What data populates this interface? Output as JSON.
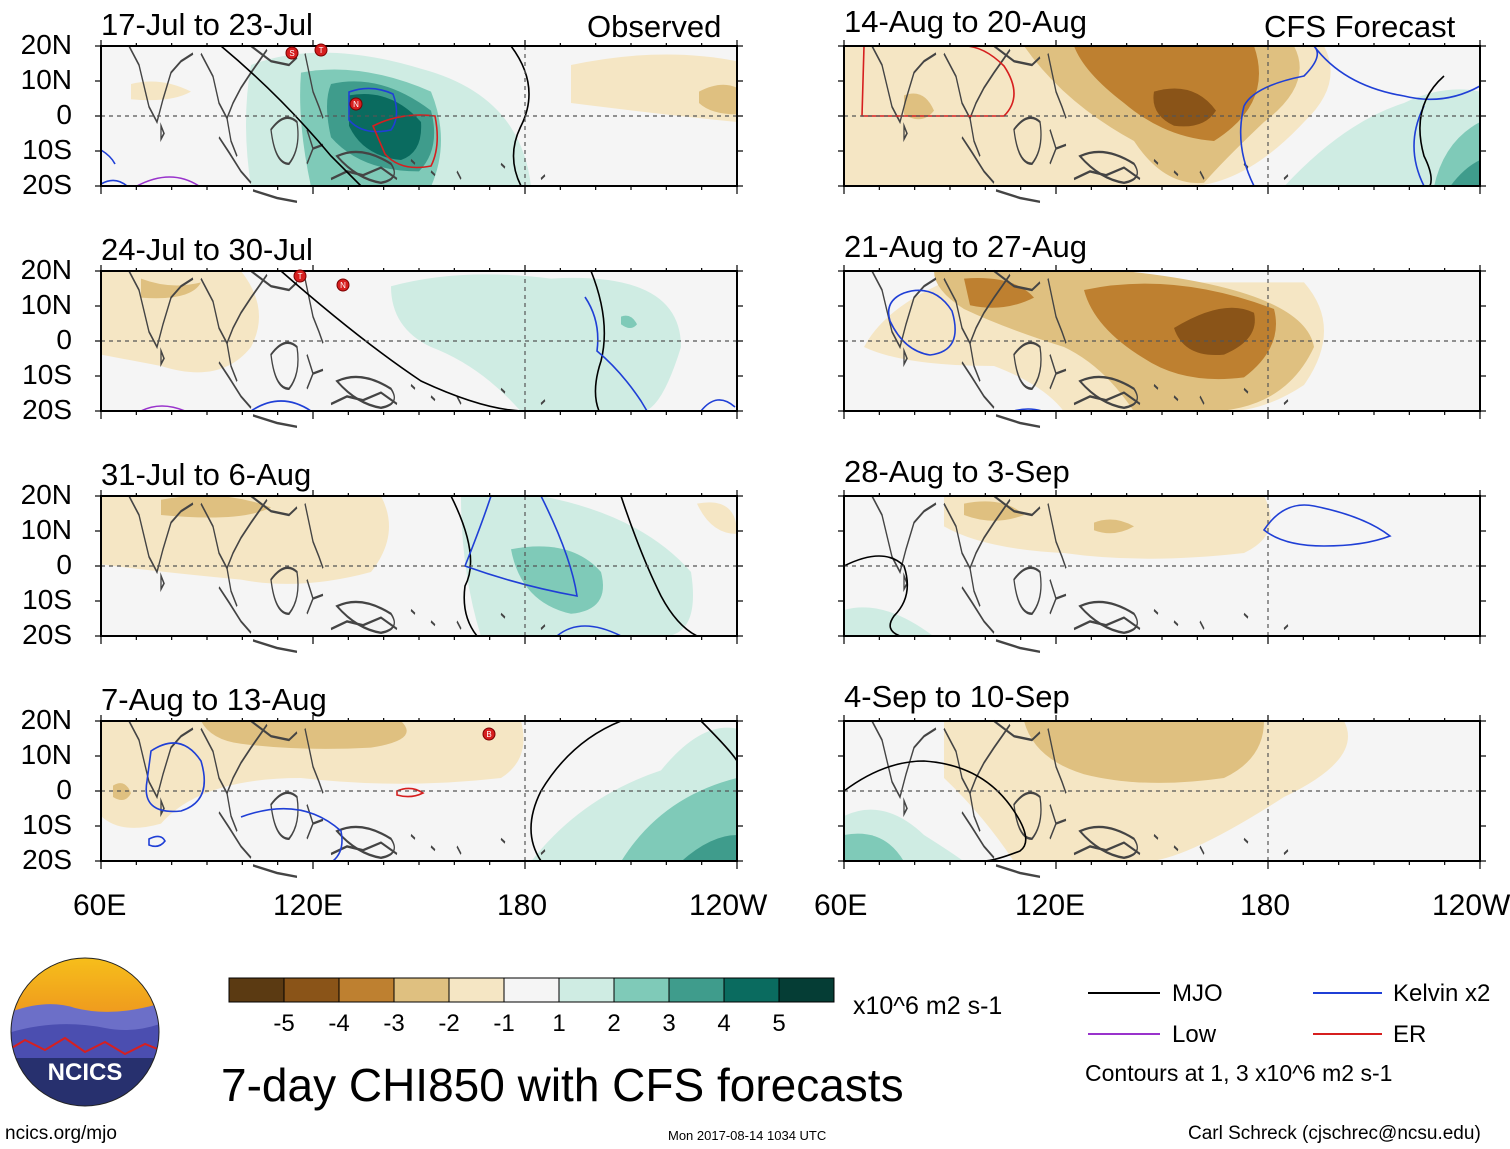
{
  "title": "7-day CHI850 with CFS forecasts",
  "panel_tags": {
    "observed": "Observed",
    "forecast": "CFS Forecast"
  },
  "lat_labels": [
    "20N",
    "10N",
    "0",
    "10S",
    "20S"
  ],
  "lon_labels": [
    "60E",
    "120E",
    "180",
    "120W"
  ],
  "panels": [
    {
      "id": "p1",
      "period": "17-Jul to 23-Jul",
      "kind": "observed"
    },
    {
      "id": "p2",
      "period": "24-Jul to 30-Jul",
      "kind": "observed"
    },
    {
      "id": "p3",
      "period": "31-Jul to 6-Aug",
      "kind": "observed"
    },
    {
      "id": "p4",
      "period": "7-Aug to 13-Aug",
      "kind": "observed"
    },
    {
      "id": "p5",
      "period": "14-Aug to 20-Aug",
      "kind": "forecast"
    },
    {
      "id": "p6",
      "period": "21-Aug to 27-Aug",
      "kind": "forecast"
    },
    {
      "id": "p7",
      "period": "28-Aug to 3-Sep",
      "kind": "forecast"
    },
    {
      "id": "p8",
      "period": "4-Sep to 10-Sep",
      "kind": "forecast"
    }
  ],
  "colorbar": {
    "labels": [
      "-5",
      "-4",
      "-3",
      "-2",
      "-1",
      "1",
      "2",
      "3",
      "4",
      "5"
    ],
    "colors": [
      "#5b3a12",
      "#8a5418",
      "#be8030",
      "#dfc080",
      "#f5e6c4",
      "#f5f5f5",
      "#cfece3",
      "#7fcab8",
      "#3f9c8c",
      "#0a6b5f",
      "#053d35"
    ],
    "units": "x10^6 m2 s-1"
  },
  "legend": {
    "items": [
      {
        "label": "MJO",
        "color": "#000000"
      },
      {
        "label": "Kelvin x2",
        "color": "#1f3fd6"
      },
      {
        "label": "Low",
        "color": "#9933cc"
      },
      {
        "label": "ER",
        "color": "#d61f1f"
      }
    ],
    "note": "Contours at 1, 3 x10^6 m2 s-1"
  },
  "logo": {
    "text": "NCICS"
  },
  "footer": {
    "website": "ncics.org/mjo",
    "timestamp": "Mon 2017-08-14 1034 UTC",
    "credit": "Carl Schreck (cjschrec@ncsu.edu)"
  },
  "storm_markers": [
    {
      "panel": "p1",
      "label": "S"
    },
    {
      "panel": "p1",
      "label": "T"
    },
    {
      "panel": "p1",
      "label": "N"
    },
    {
      "panel": "p2",
      "label": "T"
    },
    {
      "panel": "p2",
      "label": "N"
    },
    {
      "panel": "p4",
      "label": "B"
    }
  ]
}
